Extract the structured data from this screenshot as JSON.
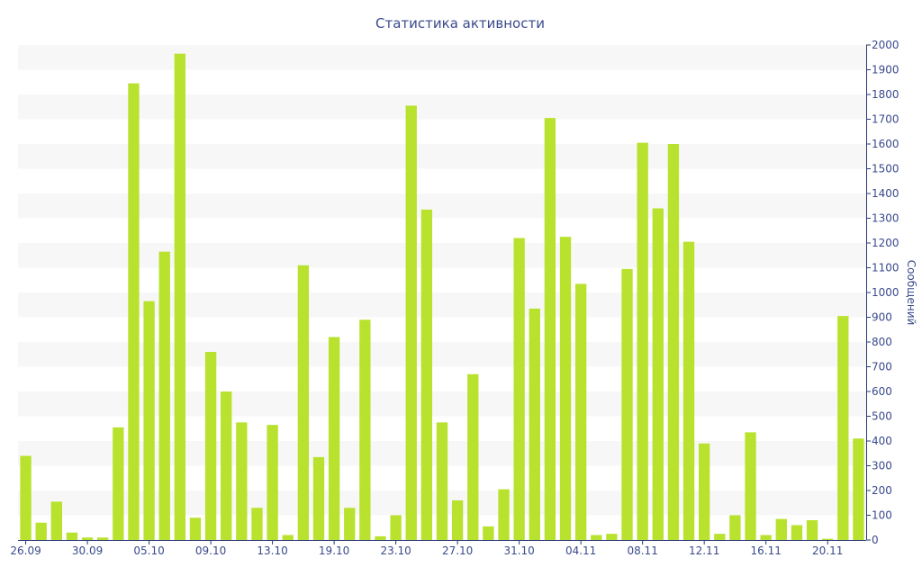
{
  "chart_data": {
    "type": "bar",
    "title": "Статистика активности",
    "xlabel": "",
    "ylabel": "Сообщений",
    "ylim": [
      0,
      2000
    ],
    "y_ticks": [
      0,
      100,
      200,
      300,
      400,
      500,
      600,
      700,
      800,
      900,
      1000,
      1100,
      1200,
      1300,
      1400,
      1500,
      1600,
      1700,
      1800,
      1900,
      2000
    ],
    "x_tick_labels": [
      {
        "index": 0,
        "label": "26.09"
      },
      {
        "index": 4,
        "label": "30.09"
      },
      {
        "index": 8,
        "label": "05.10"
      },
      {
        "index": 12,
        "label": "09.10"
      },
      {
        "index": 16,
        "label": "13.10"
      },
      {
        "index": 20,
        "label": "19.10"
      },
      {
        "index": 24,
        "label": "23.10"
      },
      {
        "index": 28,
        "label": "27.10"
      },
      {
        "index": 32,
        "label": "31.10"
      },
      {
        "index": 36,
        "label": "04.11"
      },
      {
        "index": 40,
        "label": "08.11"
      },
      {
        "index": 44,
        "label": "12.11"
      },
      {
        "index": 48,
        "label": "16.11"
      },
      {
        "index": 52,
        "label": "20.11"
      }
    ],
    "values": [
      340,
      70,
      155,
      30,
      10,
      10,
      455,
      1845,
      965,
      1165,
      1965,
      90,
      760,
      600,
      475,
      130,
      465,
      20,
      1110,
      335,
      820,
      130,
      890,
      15,
      100,
      1755,
      1335,
      475,
      160,
      670,
      55,
      205,
      1220,
      935,
      1705,
      1225,
      1035,
      20,
      25,
      1095,
      1605,
      1340,
      1600,
      1205,
      390,
      25,
      100,
      435,
      20,
      85,
      60,
      80,
      5,
      905,
      410
    ],
    "bar_color": "#b8e22d",
    "stripe_color": "#f7f7f7",
    "text_color": "#3a4a8c",
    "axis_color": "#2b3b7a",
    "grid": "alternating horizontal bands"
  }
}
